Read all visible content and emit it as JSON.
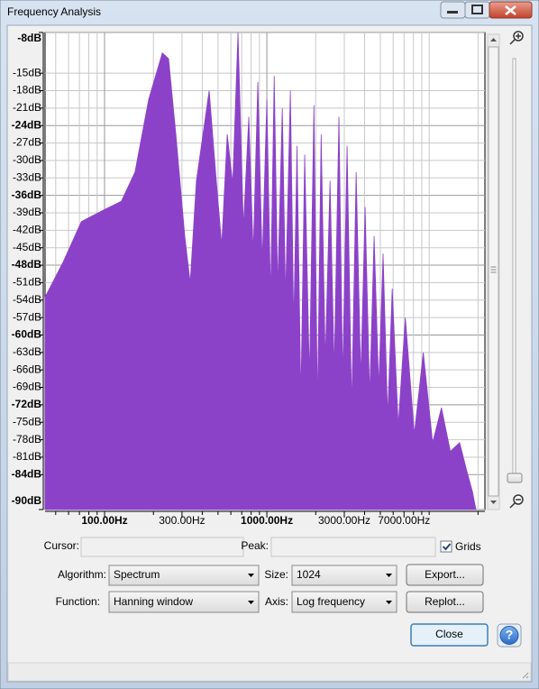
{
  "window": {
    "title": "Frequency Analysis"
  },
  "chart_data": {
    "type": "area",
    "color": "#8c42c8",
    "log_x": true,
    "grid": true,
    "xlim": [
      43,
      22050
    ],
    "xticks": [
      {
        "value": 100,
        "label": "100.00Hz"
      },
      {
        "value": 300,
        "label": "300.00Hz"
      },
      {
        "value": 1000,
        "label": "1000.00Hz"
      },
      {
        "value": 3000,
        "label": "3000.00Hz"
      },
      {
        "value": 7000,
        "label": "7000.00Hz"
      }
    ],
    "xminor": [
      50,
      60,
      70,
      80,
      90,
      200,
      400,
      500,
      600,
      700,
      800,
      900,
      2000,
      4000,
      5000,
      6000,
      8000,
      9000,
      10000,
      20000
    ],
    "ylim": [
      -90,
      -8
    ],
    "yticks": [
      {
        "value": -8,
        "label": "-8dB"
      },
      {
        "value": -15,
        "label": "-15dB"
      },
      {
        "value": -18,
        "label": "-18dB"
      },
      {
        "value": -21,
        "label": "-21dB"
      },
      {
        "value": -24,
        "label": "-24dB"
      },
      {
        "value": -27,
        "label": "-27dB"
      },
      {
        "value": -30,
        "label": "-30dB"
      },
      {
        "value": -33,
        "label": "-33dB"
      },
      {
        "value": -36,
        "label": "-36dB"
      },
      {
        "value": -39,
        "label": "-39dB"
      },
      {
        "value": -42,
        "label": "-42dB"
      },
      {
        "value": -45,
        "label": "-45dB"
      },
      {
        "value": -48,
        "label": "-48dB"
      },
      {
        "value": -51,
        "label": "-51dB"
      },
      {
        "value": -54,
        "label": "-54dB"
      },
      {
        "value": -57,
        "label": "-57dB"
      },
      {
        "value": -60,
        "label": "-60dB"
      },
      {
        "value": -63,
        "label": "-63dB"
      },
      {
        "value": -66,
        "label": "-66dB"
      },
      {
        "value": -69,
        "label": "-69dB"
      },
      {
        "value": -72,
        "label": "-72dB"
      },
      {
        "value": -75,
        "label": "-75dB"
      },
      {
        "value": -78,
        "label": "-78dB"
      },
      {
        "value": -81,
        "label": "-81dB"
      },
      {
        "value": -84,
        "label": "-84dB"
      },
      {
        "value": -90,
        "label": "-90dB"
      }
    ],
    "x": [
      43,
      55.5,
      72,
      99,
      127,
      154,
      187,
      227,
      248,
      275,
      312,
      337,
      368,
      441,
      488,
      527,
      570,
      616,
      664,
      717,
      774,
      824,
      880,
      936,
      1000,
      1054,
      1110,
      1166,
      1245,
      1304,
      1396,
      1464,
      1534,
      1620,
      1710,
      1830,
      1950,
      2050,
      2160,
      2290,
      2450,
      2600,
      2780,
      2930,
      3120,
      3330,
      3550,
      3790,
      4030,
      4300,
      4580,
      4890,
      5200,
      5550,
      5920,
      6450,
      7130,
      8100,
      9200,
      10500,
      11900,
      13500,
      15400,
      17100,
      18500,
      19400
    ],
    "values": [
      -53.5,
      -47.5,
      -40.5,
      -38.5,
      -37,
      -32,
      -19.5,
      -11.5,
      -12.5,
      -25.5,
      -43,
      -51,
      -33.5,
      -18,
      -33.5,
      -44.5,
      -25.5,
      -34,
      -8,
      -41.5,
      -22.5,
      -46,
      -16.5,
      -47.5,
      -19.5,
      -53.5,
      -15.5,
      -52,
      -21,
      -53.5,
      -18,
      -58.5,
      -27.5,
      -71,
      -29,
      -67.5,
      -20.5,
      -72.5,
      -25.5,
      -64.5,
      -33.5,
      -66,
      -22.5,
      -67.5,
      -27.5,
      -72.5,
      -32,
      -67.5,
      -38,
      -70.5,
      -43,
      -69,
      -46,
      -74,
      -52,
      -75.5,
      -57,
      -77,
      -63,
      -78.5,
      -72.5,
      -80,
      -78.5,
      -83.5,
      -87,
      -90
    ]
  },
  "controls": {
    "cursor": {
      "label": "Cursor:"
    },
    "peak": {
      "label": "Peak:"
    },
    "grids": {
      "label": "Grids",
      "checked": true
    },
    "algorithm": {
      "label": "Algorithm:",
      "value": "Spectrum"
    },
    "size": {
      "label": "Size:",
      "value": "1024"
    },
    "function": {
      "label": "Function:",
      "value": "Hanning window"
    },
    "axis": {
      "label": "Axis:",
      "value": "Log frequency"
    },
    "export": "Export...",
    "replot": "Replot...",
    "close": "Close",
    "help": "?"
  }
}
